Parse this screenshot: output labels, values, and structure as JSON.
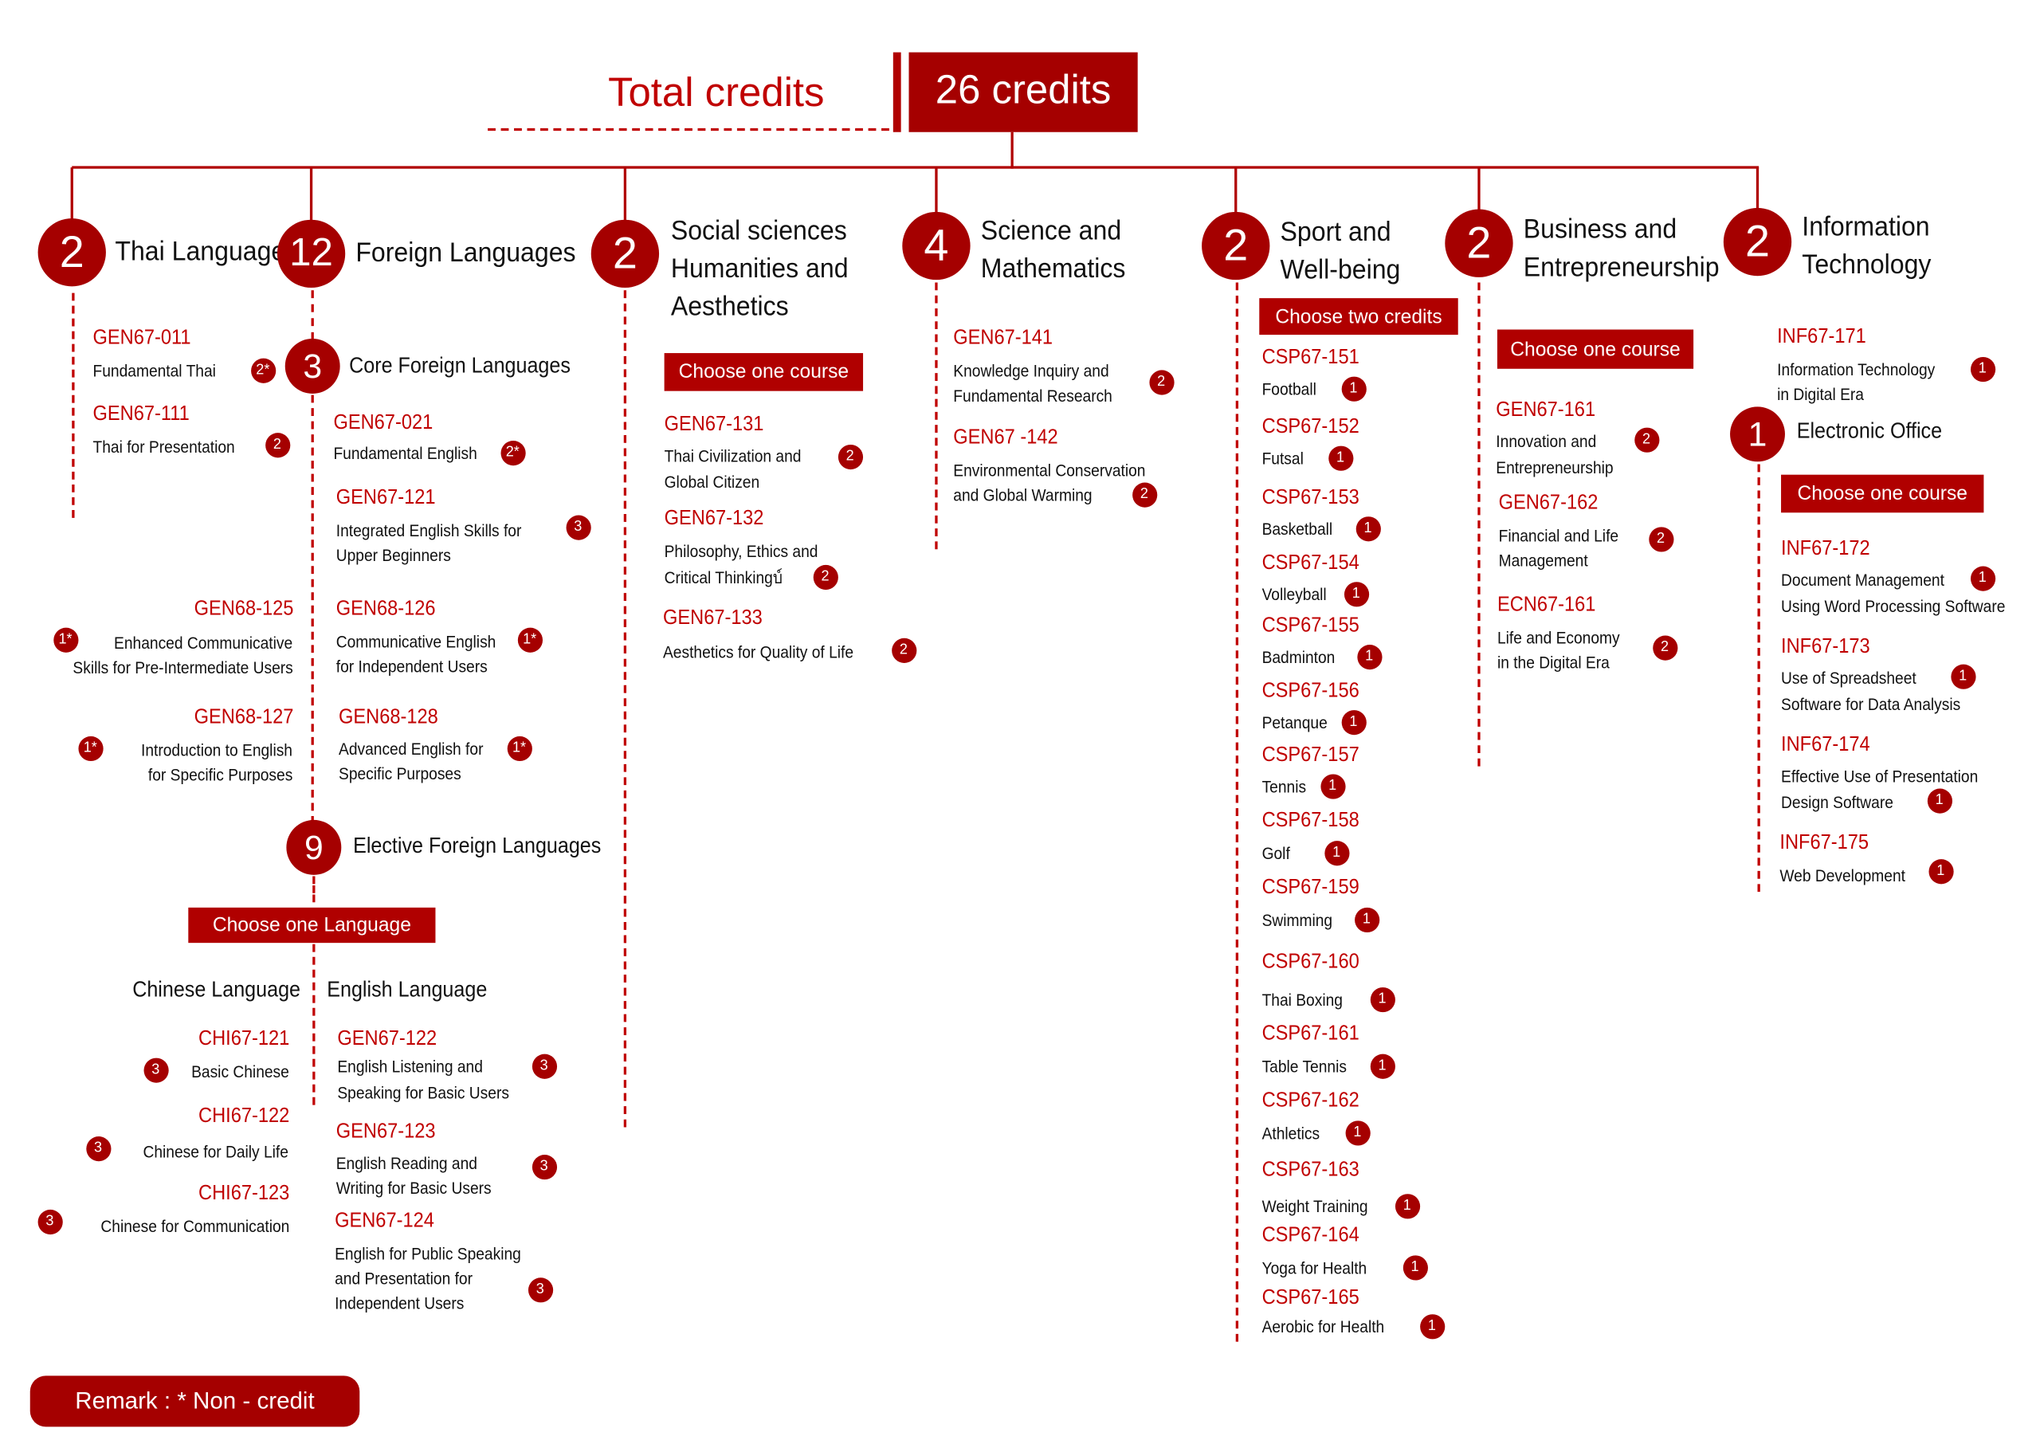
{
  "header": {
    "title": "Total credits",
    "total": "26 credits"
  },
  "colors": {
    "accent": "#a50000",
    "code_text": "#c00000"
  },
  "categories": [
    {
      "credits": "2",
      "title": [
        "Thai Language"
      ],
      "courses": [
        {
          "code": "GEN67-011",
          "lines": [
            "Fundamental Thai"
          ],
          "credits": "2*"
        },
        {
          "code": "GEN67-111",
          "lines": [
            "Thai for Presentation"
          ],
          "credits": "2"
        }
      ]
    },
    {
      "credits": "12",
      "title": [
        "Foreign Languages"
      ],
      "core": {
        "credits": "3",
        "title": "Core Foreign Languages",
        "courses": [
          {
            "code": "GEN67-021",
            "lines": [
              "Fundamental English"
            ],
            "credits": "2*"
          },
          {
            "code": "GEN67-121",
            "lines": [
              "Integrated English Skills for",
              "Upper Beginners"
            ],
            "credits": "3"
          },
          {
            "code": "GEN68-125",
            "lines": [
              "Enhanced Communicative",
              "Skills for Pre-Intermediate Users"
            ],
            "credits": "1*"
          },
          {
            "code": "GEN68-126",
            "lines": [
              "Communicative English",
              "for Independent Users"
            ],
            "credits": "1*"
          },
          {
            "code": "GEN68-127",
            "lines": [
              "Introduction to English",
              "for Specific Purposes"
            ],
            "credits": "1*"
          },
          {
            "code": "GEN68-128",
            "lines": [
              "Advanced English for",
              "Specific Purposes"
            ],
            "credits": "1*"
          }
        ]
      },
      "elective": {
        "credits": "9",
        "title": "Elective Foreign Languages",
        "choose": "Choose one Language",
        "languages": [
          {
            "name": "Chinese Language",
            "courses": [
              {
                "code": "CHI67-121",
                "lines": [
                  "Basic Chinese"
                ],
                "credits": "3"
              },
              {
                "code": "CHI67-122",
                "lines": [
                  "Chinese for Daily Life"
                ],
                "credits": "3"
              },
              {
                "code": "CHI67-123",
                "lines": [
                  "Chinese for Communication"
                ],
                "credits": "3"
              }
            ]
          },
          {
            "name": "English Language",
            "courses": [
              {
                "code": "GEN67-122",
                "lines": [
                  "English Listening and",
                  "Speaking for Basic Users"
                ],
                "credits": "3"
              },
              {
                "code": "GEN67-123",
                "lines": [
                  "English Reading and",
                  "Writing for Basic Users"
                ],
                "credits": "3"
              },
              {
                "code": "GEN67-124",
                "lines": [
                  "English for Public Speaking",
                  "and Presentation for",
                  "Independent Users"
                ],
                "credits": "3"
              }
            ]
          }
        ]
      }
    },
    {
      "credits": "2",
      "title": [
        "Social sciences",
        "Humanities and",
        "Aesthetics"
      ],
      "choose": "Choose one course",
      "courses": [
        {
          "code": "GEN67-131",
          "lines": [
            "Thai Civilization and",
            "Global Citizen"
          ],
          "credits": "2"
        },
        {
          "code": "GEN67-132",
          "lines": [
            "Philosophy, Ethics and",
            "Critical Thinkingบ์"
          ],
          "credits": "2"
        },
        {
          "code": "GEN67-133",
          "lines": [
            "Aesthetics for Quality of Life"
          ],
          "credits": "2"
        }
      ]
    },
    {
      "credits": "4",
      "title": [
        "Science and",
        "Mathematics"
      ],
      "courses": [
        {
          "code": "GEN67-141",
          "lines": [
            "Knowledge Inquiry and",
            "Fundamental Research"
          ],
          "credits": "2"
        },
        {
          "code": "GEN67 -142",
          "lines": [
            "Environmental Conservation",
            "and Global Warming"
          ],
          "credits": "2"
        }
      ]
    },
    {
      "credits": "2",
      "title": [
        "Sport and",
        "Well-being"
      ],
      "choose": "Choose two credits",
      "courses": [
        {
          "code": "CSP67-151",
          "lines": [
            "Football"
          ],
          "credits": "1"
        },
        {
          "code": "CSP67-152",
          "lines": [
            "Futsal"
          ],
          "credits": "1"
        },
        {
          "code": "CSP67-153",
          "lines": [
            "Basketball"
          ],
          "credits": "1"
        },
        {
          "code": "CSP67-154",
          "lines": [
            "Volleyball"
          ],
          "credits": "1"
        },
        {
          "code": "CSP67-155",
          "lines": [
            "Badminton"
          ],
          "credits": "1"
        },
        {
          "code": "CSP67-156",
          "lines": [
            "Petanque"
          ],
          "credits": "1"
        },
        {
          "code": "CSP67-157",
          "lines": [
            "Tennis"
          ],
          "credits": "1"
        },
        {
          "code": "CSP67-158",
          "lines": [
            "Golf"
          ],
          "credits": "1"
        },
        {
          "code": "CSP67-159",
          "lines": [
            "Swimming"
          ],
          "credits": "1"
        },
        {
          "code": "CSP67-160",
          "lines": [
            "Thai Boxing"
          ],
          "credits": "1"
        },
        {
          "code": "CSP67-161",
          "lines": [
            "Table Tennis"
          ],
          "credits": "1"
        },
        {
          "code": "CSP67-162",
          "lines": [
            "Athletics"
          ],
          "credits": "1"
        },
        {
          "code": "CSP67-163",
          "lines": [
            "Weight Training"
          ],
          "credits": "1"
        },
        {
          "code": "CSP67-164",
          "lines": [
            "Yoga for Health"
          ],
          "credits": "1"
        },
        {
          "code": "CSP67-165",
          "lines": [
            "Aerobic for Health"
          ],
          "credits": "1"
        }
      ]
    },
    {
      "credits": "2",
      "title": [
        "Business and",
        "Entrepreneurship"
      ],
      "choose": "Choose one course",
      "courses": [
        {
          "code": "GEN67-161",
          "lines": [
            "Innovation and",
            "Entrepreneurship"
          ],
          "credits": "2"
        },
        {
          "code": "GEN67-162",
          "lines": [
            "Financial and Life",
            "Management"
          ],
          "credits": "2"
        },
        {
          "code": "ECN67-161",
          "lines": [
            "Life and Economy",
            "in the Digital Era"
          ],
          "credits": "2"
        }
      ]
    },
    {
      "credits": "2",
      "title": [
        "Information",
        "Technology"
      ],
      "courses": [
        {
          "code": "INF67-171",
          "lines": [
            "Information Technology",
            "in Digital Era"
          ],
          "credits": "1"
        }
      ],
      "office": {
        "credits": "1",
        "title": "Electronic Office",
        "choose": "Choose one course",
        "courses": [
          {
            "code": "INF67-172",
            "lines": [
              "Document Management",
              "Using Word Processing Software"
            ],
            "credits": "1"
          },
          {
            "code": "INF67-173",
            "lines": [
              "Use of Spreadsheet",
              "Software for Data Analysis"
            ],
            "credits": "1"
          },
          {
            "code": "INF67-174",
            "lines": [
              "Effective Use of Presentation",
              "Design Software"
            ],
            "credits": "1"
          },
          {
            "code": "INF67-175",
            "lines": [
              "Web Development"
            ],
            "credits": "1"
          }
        ]
      }
    }
  ],
  "remark": "Remark : * Non - credit"
}
